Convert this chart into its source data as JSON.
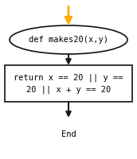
{
  "bg_color": "#ffffff",
  "arrow_color": "#ffaa00",
  "arrow_dark": "#1a1a1a",
  "ellipse_text": "def makes20(x,y)",
  "ellipse_bg": "#ffffff",
  "ellipse_border": "#111111",
  "rect_text": "return x == 20 || y ==\n20 || x + y == 20",
  "rect_bg": "#ffffff",
  "rect_border": "#111111",
  "end_text": "End",
  "end_border": "#cc0000",
  "font_size": 7.5,
  "font_family": "monospace",
  "fig_width": 1.72,
  "fig_height": 2.0,
  "dpi": 100
}
